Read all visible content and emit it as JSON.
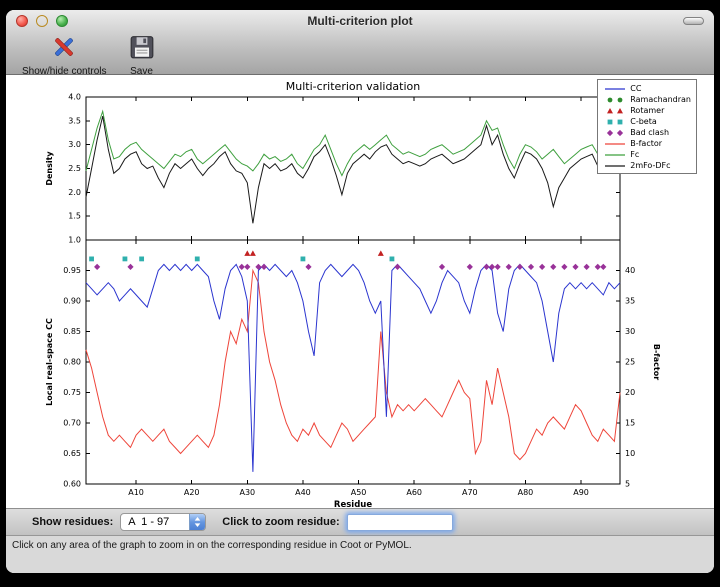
{
  "window": {
    "title": "Multi-criterion plot"
  },
  "toolbar": {
    "items": [
      {
        "label": "Show/hide controls",
        "icon": "tools-icon"
      },
      {
        "label": "Save",
        "icon": "save-icon"
      }
    ]
  },
  "controls": {
    "show_residues_label": "Show residues:",
    "chain_range_value": "A  1 - 97",
    "zoom_label": "Click to zoom residue:",
    "zoom_value": ""
  },
  "status": {
    "text": "Click on any area of the graph to zoom in on the corresponding residue in Coot or PyMOL."
  },
  "legend": [
    {
      "label": "CC",
      "type": "line",
      "color": "#2b35cf"
    },
    {
      "label": "Ramachandran",
      "type": "circle",
      "color": "#2e8b2e"
    },
    {
      "label": "Rotamer",
      "type": "triangle",
      "color": "#c32222"
    },
    {
      "label": "C-beta",
      "type": "square",
      "color": "#2fb0ad"
    },
    {
      "label": "Bad clash",
      "type": "diamond",
      "color": "#993299"
    },
    {
      "label": "B-factor",
      "type": "line",
      "color": "#ee453a"
    },
    {
      "label": "Fc",
      "type": "line",
      "color": "#3fa03f"
    },
    {
      "label": "2mFo-DFc",
      "type": "line",
      "color": "#1a1a1a"
    }
  ],
  "chart_data": {
    "type": "line",
    "title": "Multi-criterion validation",
    "xlabel": "Residue",
    "legend_position": "upper-right",
    "x_range": [
      1,
      97
    ],
    "x_ticks": [
      {
        "v": 10,
        "label": "A10"
      },
      {
        "v": 20,
        "label": "A20"
      },
      {
        "v": 30,
        "label": "A30"
      },
      {
        "v": 40,
        "label": "A40"
      },
      {
        "v": 50,
        "label": "A50"
      },
      {
        "v": 60,
        "label": "A60"
      },
      {
        "v": 70,
        "label": "A70"
      },
      {
        "v": 80,
        "label": "A80"
      },
      {
        "v": 90,
        "label": "A90"
      }
    ],
    "top": {
      "ylabel": "Density",
      "ylim": [
        1.0,
        4.0
      ],
      "yticks": [
        {
          "v": 1.0,
          "t": "1.0"
        },
        {
          "v": 1.5,
          "t": "1.5"
        },
        {
          "v": 2.0,
          "t": "2.0"
        },
        {
          "v": 2.5,
          "t": "2.5"
        },
        {
          "v": 3.0,
          "t": "3.0"
        },
        {
          "v": 3.5,
          "t": "3.5"
        },
        {
          "v": 4.0,
          "t": "4.0"
        }
      ],
      "series": [
        {
          "name": "Fc",
          "color": "#3fa03f",
          "values": [
            2.45,
            2.9,
            3.35,
            3.7,
            3.1,
            2.7,
            2.75,
            2.9,
            3.0,
            3.05,
            2.9,
            2.8,
            2.7,
            2.6,
            2.5,
            2.65,
            2.8,
            2.75,
            2.85,
            2.9,
            2.7,
            2.6,
            2.7,
            2.8,
            2.9,
            3.0,
            2.85,
            2.7,
            2.6,
            2.55,
            2.45,
            2.6,
            2.8,
            2.7,
            2.75,
            2.65,
            2.7,
            2.8,
            2.6,
            2.5,
            2.7,
            2.9,
            3.0,
            3.2,
            2.9,
            2.6,
            2.35,
            2.6,
            2.8,
            2.9,
            3.0,
            2.9,
            3.0,
            3.1,
            3.2,
            3.0,
            2.9,
            2.8,
            2.85,
            2.8,
            2.75,
            2.8,
            2.9,
            2.95,
            3.0,
            2.9,
            2.8,
            2.85,
            2.9,
            3.0,
            3.1,
            3.2,
            3.5,
            3.3,
            3.35,
            3.0,
            2.7,
            2.5,
            2.8,
            3.0,
            2.95,
            2.85,
            2.7,
            2.8,
            2.9,
            2.75,
            2.6,
            2.7,
            2.8,
            2.9,
            2.95,
            3.0,
            2.8,
            2.9,
            3.3,
            3.1,
            2.9
          ]
        },
        {
          "name": "2mFo-DFc",
          "color": "#1a1a1a",
          "values": [
            1.9,
            2.5,
            3.1,
            3.6,
            2.9,
            2.4,
            2.5,
            2.7,
            2.8,
            2.85,
            2.6,
            2.5,
            2.55,
            2.3,
            2.1,
            2.4,
            2.6,
            2.5,
            2.6,
            2.7,
            2.5,
            2.35,
            2.5,
            2.6,
            2.75,
            2.85,
            2.6,
            2.45,
            2.4,
            2.2,
            1.35,
            2.1,
            2.6,
            2.5,
            2.6,
            2.45,
            2.5,
            2.6,
            2.4,
            2.3,
            2.5,
            2.75,
            2.85,
            3.0,
            2.7,
            2.35,
            1.95,
            2.4,
            2.6,
            2.7,
            2.8,
            2.7,
            2.85,
            2.95,
            3.0,
            2.8,
            2.7,
            2.6,
            2.65,
            2.6,
            2.55,
            2.6,
            2.7,
            2.75,
            2.8,
            2.7,
            2.6,
            2.65,
            2.7,
            2.8,
            2.9,
            3.0,
            3.4,
            3.0,
            3.2,
            2.8,
            2.5,
            2.3,
            2.6,
            2.85,
            2.8,
            2.7,
            2.5,
            2.2,
            1.7,
            2.1,
            2.3,
            2.5,
            2.6,
            2.7,
            2.75,
            2.8,
            2.55,
            2.7,
            3.1,
            2.9,
            3.0
          ]
        }
      ]
    },
    "bottom": {
      "ylabel_left": "Local real-space CC",
      "ylim_left": [
        0.6,
        1.0
      ],
      "yticks_left": [
        {
          "v": 0.6,
          "t": "0.60"
        },
        {
          "v": 0.65,
          "t": "0.65"
        },
        {
          "v": 0.7,
          "t": "0.70"
        },
        {
          "v": 0.75,
          "t": "0.75"
        },
        {
          "v": 0.8,
          "t": "0.80"
        },
        {
          "v": 0.85,
          "t": "0.85"
        },
        {
          "v": 0.9,
          "t": "0.90"
        },
        {
          "v": 0.95,
          "t": "0.95"
        }
      ],
      "ylabel_right": "B-factor",
      "ylim_right": [
        5,
        45
      ],
      "yticks_right": [
        {
          "v": 5,
          "t": "5"
        },
        {
          "v": 10,
          "t": "10"
        },
        {
          "v": 15,
          "t": "15"
        },
        {
          "v": 20,
          "t": "20"
        },
        {
          "v": 25,
          "t": "25"
        },
        {
          "v": 30,
          "t": "30"
        },
        {
          "v": 35,
          "t": "35"
        },
        {
          "v": 40,
          "t": "40"
        }
      ],
      "series_left": [
        {
          "name": "CC",
          "color": "#2b35cf",
          "values": [
            0.93,
            0.92,
            0.91,
            0.92,
            0.93,
            0.92,
            0.9,
            0.91,
            0.92,
            0.91,
            0.9,
            0.89,
            0.92,
            0.95,
            0.96,
            0.95,
            0.96,
            0.95,
            0.96,
            0.95,
            0.96,
            0.95,
            0.94,
            0.9,
            0.87,
            0.92,
            0.95,
            0.96,
            0.94,
            0.9,
            0.62,
            0.95,
            0.96,
            0.95,
            0.96,
            0.95,
            0.94,
            0.95,
            0.93,
            0.9,
            0.85,
            0.81,
            0.93,
            0.95,
            0.96,
            0.95,
            0.94,
            0.95,
            0.96,
            0.95,
            0.93,
            0.9,
            0.88,
            0.9,
            0.71,
            0.95,
            0.96,
            0.95,
            0.94,
            0.93,
            0.92,
            0.9,
            0.88,
            0.9,
            0.93,
            0.95,
            0.94,
            0.93,
            0.9,
            0.88,
            0.92,
            0.95,
            0.96,
            0.95,
            0.88,
            0.85,
            0.92,
            0.95,
            0.96,
            0.95,
            0.94,
            0.93,
            0.9,
            0.85,
            0.8,
            0.88,
            0.92,
            0.93,
            0.92,
            0.93,
            0.92,
            0.93,
            0.92,
            0.91,
            0.93,
            0.92,
            0.93
          ]
        }
      ],
      "series_right": [
        {
          "name": "B-factor",
          "color": "#ee453a",
          "values": [
            27,
            24,
            20,
            16,
            13,
            12,
            13,
            12,
            11,
            13,
            14,
            13,
            12,
            13,
            14,
            12,
            11,
            10,
            11,
            12,
            13,
            12,
            11,
            13,
            18,
            25,
            30,
            28,
            32,
            30,
            40,
            38,
            30,
            25,
            22,
            18,
            15,
            13,
            12,
            14,
            13,
            15,
            13,
            12,
            11,
            13,
            15,
            14,
            12,
            13,
            14,
            15,
            16,
            30,
            20,
            16,
            18,
            17,
            18,
            17,
            18,
            19,
            18,
            17,
            16,
            18,
            20,
            22,
            20,
            19,
            10,
            12,
            22,
            18,
            24,
            20,
            16,
            10,
            9,
            10,
            12,
            14,
            13,
            15,
            16,
            15,
            14,
            16,
            18,
            17,
            15,
            13,
            12,
            14,
            13,
            12,
            20
          ]
        }
      ],
      "markers": [
        {
          "name": "Rotamer",
          "shape": "triangle",
          "color": "#c32222",
          "y": 0.978,
          "residues": [
            30,
            31,
            54
          ]
        },
        {
          "name": "C-beta",
          "shape": "square",
          "color": "#2fb0ad",
          "y": 0.969,
          "residues": [
            2,
            8,
            11,
            21,
            40,
            56
          ]
        },
        {
          "name": "Bad clash",
          "shape": "diamond",
          "color": "#993299",
          "y": 0.956,
          "residues": [
            3,
            9,
            29,
            30,
            32,
            33,
            41,
            57,
            65,
            70,
            73,
            74,
            75,
            77,
            79,
            81,
            83,
            85,
            87,
            89,
            91,
            93,
            94
          ]
        },
        {
          "name": "Ramachandran",
          "shape": "circle",
          "color": "#2e8b2e",
          "y": 0.99,
          "residues": []
        }
      ]
    }
  }
}
